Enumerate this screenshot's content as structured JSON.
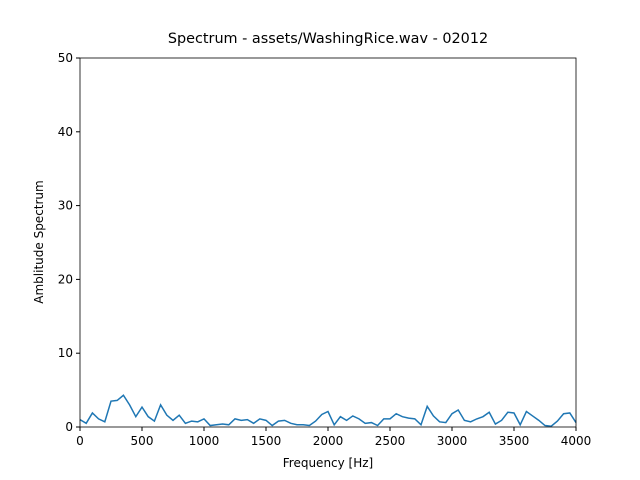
{
  "chart_data": {
    "type": "line",
    "title": "Spectrum - assets/WashingRice.wav - 02012",
    "x_label": "Frequency [Hz]",
    "y_label": "Amblitude Spectrum",
    "x": [
      0,
      50,
      100,
      150,
      200,
      250,
      300,
      350,
      400,
      450,
      500,
      550,
      600,
      650,
      700,
      750,
      800,
      850,
      900,
      950,
      1000,
      1050,
      1100,
      1150,
      1200,
      1250,
      1300,
      1350,
      1400,
      1450,
      1500,
      1550,
      1600,
      1650,
      1700,
      1750,
      1800,
      1850,
      1900,
      1950,
      2000,
      2050,
      2100,
      2150,
      2200,
      2250,
      2300,
      2350,
      2400,
      2450,
      2500,
      2550,
      2600,
      2650,
      2700,
      2750,
      2800,
      2850,
      2900,
      2950,
      3000,
      3050,
      3100,
      3150,
      3200,
      3250,
      3300,
      3350,
      3400,
      3450,
      3500,
      3550,
      3600,
      3650,
      3700,
      3750,
      3800,
      3850,
      3900,
      3950,
      4000
    ],
    "series": [
      {
        "color": "#1f77b4",
        "values": [
          1.0,
          0.5,
          1.9,
          1.1,
          0.7,
          3.5,
          3.6,
          4.3,
          3.0,
          1.4,
          2.7,
          1.4,
          0.8,
          3.0,
          1.6,
          0.9,
          1.6,
          0.5,
          0.8,
          0.7,
          1.1,
          0.2,
          0.3,
          0.4,
          0.3,
          1.1,
          0.9,
          1.0,
          0.5,
          1.1,
          0.9,
          0.2,
          0.8,
          0.9,
          0.5,
          0.3,
          0.3,
          0.2,
          0.8,
          1.7,
          2.1,
          0.3,
          1.4,
          0.9,
          1.5,
          1.1,
          0.5,
          0.6,
          0.2,
          1.1,
          1.1,
          1.8,
          1.4,
          1.2,
          1.1,
          0.3,
          2.8,
          1.5,
          0.7,
          0.6,
          1.8,
          2.3,
          0.9,
          0.7,
          1.1,
          1.4,
          2.0,
          0.4,
          0.9,
          2.0,
          1.9,
          0.3,
          2.1,
          1.5,
          0.9,
          0.2,
          0.1,
          0.8,
          1.8,
          1.9,
          0.6
        ]
      }
    ],
    "xlim": [
      0,
      4000
    ],
    "xticks": [
      0,
      500,
      1000,
      1500,
      2000,
      2500,
      3000,
      3500,
      4000
    ],
    "ylim": [
      0,
      50
    ],
    "yticks": [
      0,
      10,
      20,
      30,
      40,
      50
    ]
  }
}
